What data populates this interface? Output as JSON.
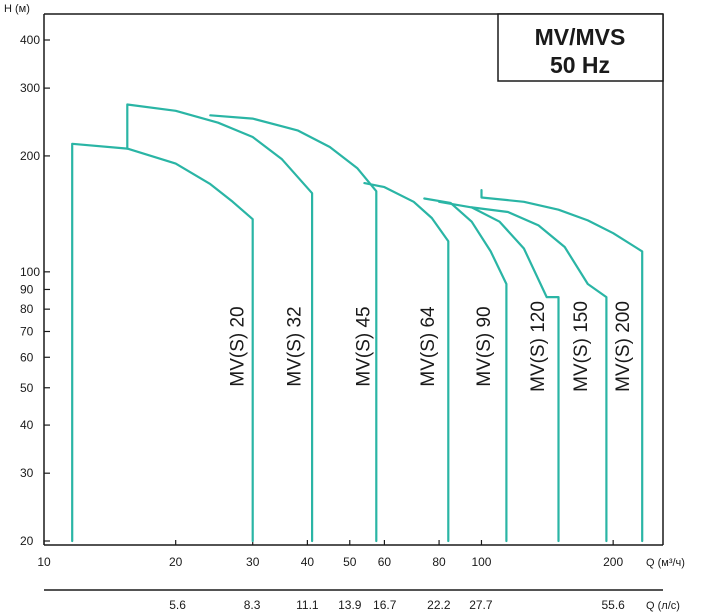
{
  "chart_data": {
    "type": "line",
    "title": "MV/MVS",
    "subtitle": "50 Hz",
    "ylabel": "H (м)",
    "xlabel": "Q (м³/ч)",
    "x2label": "Q (л/с)",
    "x_scale": "log",
    "y_scale": "log",
    "xlim": [
      10,
      260
    ],
    "ylim": [
      20,
      480
    ],
    "grid": false,
    "line_color": "#2ab5a5",
    "x_ticks": [
      {
        "value": 10,
        "label": "10"
      },
      {
        "value": 20,
        "label": "20"
      },
      {
        "value": 30,
        "label": "30"
      },
      {
        "value": 40,
        "label": "40"
      },
      {
        "value": 50,
        "label": "50"
      },
      {
        "value": 60,
        "label": "60"
      },
      {
        "value": 80,
        "label": "80"
      },
      {
        "value": 100,
        "label": "100"
      },
      {
        "value": 200,
        "label": "200"
      }
    ],
    "x2_ticks": [
      {
        "value": 20.2,
        "label": "5.6"
      },
      {
        "value": 29.9,
        "label": "8.3"
      },
      {
        "value": 40,
        "label": "11.1"
      },
      {
        "value": 50,
        "label": "13.9"
      },
      {
        "value": 60.1,
        "label": "16.7"
      },
      {
        "value": 79.9,
        "label": "22.2"
      },
      {
        "value": 99.7,
        "label": "27.7"
      },
      {
        "value": 200,
        "label": "55.6"
      }
    ],
    "y_ticks": [
      {
        "value": 20,
        "label": "20"
      },
      {
        "value": 30,
        "label": "30"
      },
      {
        "value": 40,
        "label": "40"
      },
      {
        "value": 50,
        "label": "50"
      },
      {
        "value": 60,
        "label": "60"
      },
      {
        "value": 70,
        "label": "70"
      },
      {
        "value": 80,
        "label": "80"
      },
      {
        "value": 90,
        "label": "90"
      },
      {
        "value": 100,
        "label": "100"
      },
      {
        "value": 200,
        "label": "200"
      },
      {
        "value": 300,
        "label": "300"
      },
      {
        "value": 400,
        "label": "400"
      }
    ],
    "series": [
      {
        "name": "MV(S) 20",
        "label_x": 28.6,
        "label_y": 64,
        "points": [
          [
            11.6,
            20
          ],
          [
            11.6,
            215
          ],
          [
            15.5,
            209
          ],
          [
            20,
            191
          ],
          [
            24,
            169
          ],
          [
            27,
            152
          ],
          [
            30,
            137
          ],
          [
            30,
            20
          ]
        ]
      },
      {
        "name": "MV(S) 32",
        "label_x": 38.6,
        "label_y": 64,
        "points": [
          [
            15.5,
            209
          ],
          [
            15.5,
            272
          ],
          [
            20,
            262
          ],
          [
            25,
            244
          ],
          [
            30,
            224
          ],
          [
            35,
            196
          ],
          [
            41,
            160
          ],
          [
            41,
            20
          ]
        ]
      },
      {
        "name": "MV(S) 45",
        "label_x": 55.5,
        "label_y": 64,
        "points": [
          [
            24,
            255
          ],
          [
            30,
            250
          ],
          [
            38,
            233
          ],
          [
            45,
            211
          ],
          [
            52,
            186
          ],
          [
            57.5,
            162
          ],
          [
            57.5,
            20
          ]
        ]
      },
      {
        "name": "MV(S) 64",
        "label_x": 77.9,
        "label_y": 64,
        "points": [
          [
            54,
            170
          ],
          [
            60,
            166
          ],
          [
            70,
            152
          ],
          [
            77,
            138
          ],
          [
            84,
            120
          ],
          [
            84,
            20
          ]
        ]
      },
      {
        "name": "MV(S) 90",
        "label_x": 104.6,
        "label_y": 64,
        "points": [
          [
            74,
            155
          ],
          [
            85,
            151
          ],
          [
            95,
            135
          ],
          [
            105,
            113
          ],
          [
            114,
            93
          ],
          [
            114,
            20
          ]
        ]
      },
      {
        "name": "MV(S) 120",
        "label_x": 138.8,
        "label_y": 64,
        "points": [
          [
            80,
            152
          ],
          [
            95,
            147
          ],
          [
            110,
            135
          ],
          [
            125,
            115
          ],
          [
            141,
            86
          ],
          [
            150,
            86
          ],
          [
            150,
            20
          ]
        ]
      },
      {
        "name": "MV(S) 150",
        "label_x": 174.1,
        "label_y": 64,
        "points": [
          [
            95,
            147
          ],
          [
            115,
            143
          ],
          [
            135,
            132
          ],
          [
            155,
            116
          ],
          [
            175,
            93
          ],
          [
            193,
            86
          ],
          [
            193,
            20
          ]
        ]
      },
      {
        "name": "MV(S) 200",
        "label_x": 217.4,
        "label_y": 64,
        "points": [
          [
            100,
            163
          ],
          [
            100,
            156
          ],
          [
            125,
            152
          ],
          [
            150,
            145
          ],
          [
            175,
            136
          ],
          [
            200,
            126
          ],
          [
            233,
            113
          ],
          [
            233,
            20
          ]
        ]
      }
    ]
  }
}
